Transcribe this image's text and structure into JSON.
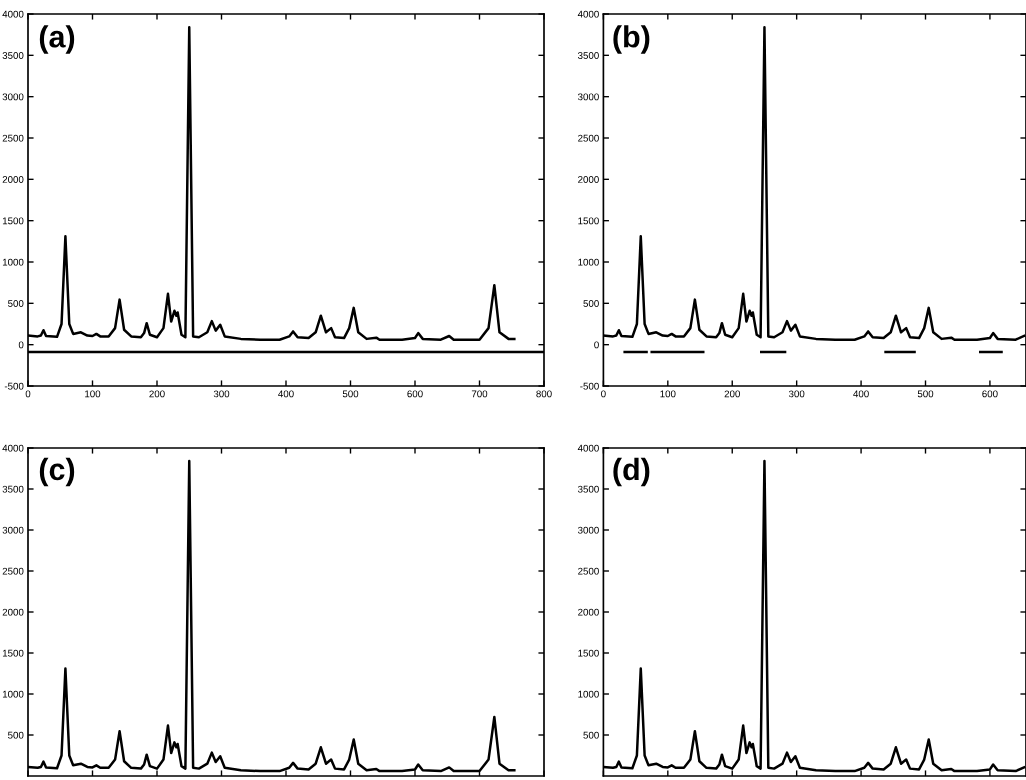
{
  "chart_data": [
    {
      "type": "line",
      "title": "(a)",
      "x": [
        0,
        15,
        20,
        24,
        28,
        45,
        52,
        58,
        64,
        70,
        82,
        92,
        100,
        106,
        112,
        125,
        135,
        142,
        149,
        160,
        175,
        180,
        184,
        189,
        200,
        210,
        217,
        222,
        227,
        230,
        232,
        238,
        244,
        250,
        256,
        265,
        278,
        285,
        291,
        298,
        305,
        330,
        360,
        390,
        405,
        411,
        418,
        435,
        446,
        454,
        462,
        470,
        476,
        490,
        498,
        505,
        512,
        525,
        540,
        545,
        580,
        600,
        605,
        612,
        640,
        653,
        660,
        700,
        714,
        723,
        731,
        745,
        754
      ],
      "series": [
        {
          "color": "#000000",
          "values": [
            110,
            100,
            110,
            175,
            105,
            95,
            250,
            1310,
            250,
            130,
            150,
            110,
            105,
            130,
            100,
            100,
            200,
            545,
            180,
            100,
            90,
            140,
            260,
            120,
            90,
            200,
            615,
            280,
            410,
            350,
            390,
            120,
            90,
            3840,
            100,
            90,
            150,
            285,
            170,
            240,
            100,
            70,
            60,
            60,
            100,
            160,
            90,
            80,
            150,
            350,
            150,
            200,
            90,
            80,
            200,
            445,
            150,
            70,
            85,
            60,
            60,
            80,
            140,
            70,
            60,
            105,
            60,
            60,
            200,
            720,
            150,
            70,
            70
          ]
        }
      ],
      "ref_lines": [
        {
          "axis": "y",
          "value": -90,
          "color": "#000000"
        }
      ],
      "xlim": [
        0,
        800
      ],
      "xticks": [
        0,
        100,
        200,
        300,
        400,
        500,
        600,
        700,
        800
      ],
      "ylim": [
        -500,
        4000
      ],
      "yticks": [
        -500,
        0,
        500,
        1000,
        1500,
        2000,
        2500,
        3000,
        3500,
        4000
      ],
      "grid": false,
      "legend": false
    },
    {
      "type": "line",
      "title": "(b)",
      "x": [
        0,
        15,
        20,
        24,
        28,
        45,
        52,
        58,
        64,
        70,
        82,
        92,
        100,
        106,
        112,
        125,
        135,
        142,
        149,
        160,
        175,
        180,
        184,
        189,
        200,
        210,
        217,
        222,
        227,
        230,
        232,
        238,
        244,
        250,
        256,
        265,
        278,
        285,
        291,
        298,
        305,
        330,
        360,
        390,
        405,
        411,
        418,
        435,
        446,
        454,
        462,
        470,
        476,
        490,
        498,
        505,
        512,
        525,
        540,
        545,
        580,
        600,
        605,
        612,
        640,
        653
      ],
      "series": [
        {
          "color": "#000000",
          "values": [
            110,
            100,
            110,
            175,
            105,
            95,
            250,
            1310,
            250,
            130,
            150,
            110,
            105,
            130,
            100,
            100,
            200,
            545,
            180,
            100,
            90,
            140,
            260,
            120,
            90,
            200,
            615,
            280,
            410,
            350,
            390,
            120,
            90,
            3840,
            100,
            90,
            150,
            285,
            170,
            240,
            100,
            70,
            60,
            60,
            100,
            160,
            90,
            80,
            150,
            350,
            150,
            200,
            90,
            80,
            200,
            445,
            150,
            70,
            85,
            60,
            60,
            80,
            140,
            70,
            60,
            105
          ]
        },
        {
          "type": "line",
          "color": "#000000",
          "x": [
            33,
            67,
            70,
            75,
            155,
            200,
            245,
            282,
            360,
            438,
            483,
            530,
            585,
            618
          ],
          "values": [
            -90,
            -90,
            null,
            -90,
            -90,
            null,
            -90,
            -90,
            null,
            -90,
            -90,
            null,
            -90,
            -90
          ]
        }
      ],
      "xlim": [
        0,
        656
      ],
      "xticks": [
        0,
        100,
        200,
        300,
        400,
        500,
        600
      ],
      "ylim": [
        -500,
        4000
      ],
      "yticks": [
        -500,
        0,
        500,
        1000,
        1500,
        2000,
        2500,
        3000,
        3500,
        4000
      ],
      "grid": false,
      "legend": false
    },
    {
      "type": "line",
      "title": "(c)",
      "x": [
        0,
        15,
        20,
        24,
        28,
        45,
        52,
        58,
        64,
        70,
        82,
        92,
        100,
        106,
        112,
        125,
        135,
        142,
        149,
        160,
        175,
        180,
        184,
        189,
        200,
        210,
        217,
        222,
        227,
        230,
        232,
        238,
        244,
        250,
        256,
        265,
        278,
        285,
        291,
        298,
        305,
        330,
        360,
        390,
        405,
        411,
        418,
        435,
        446,
        454,
        462,
        470,
        476,
        490,
        498,
        505,
        512,
        525,
        540,
        545,
        580,
        600,
        605,
        612,
        640,
        653,
        660,
        700,
        714,
        723,
        731,
        745,
        754
      ],
      "series": [
        {
          "color": "#000000",
          "values": [
            110,
            100,
            110,
            175,
            105,
            95,
            250,
            1310,
            250,
            130,
            150,
            110,
            105,
            130,
            100,
            100,
            200,
            545,
            180,
            100,
            90,
            140,
            260,
            120,
            90,
            200,
            615,
            280,
            410,
            350,
            390,
            120,
            90,
            3840,
            100,
            90,
            150,
            285,
            170,
            240,
            100,
            70,
            60,
            60,
            100,
            160,
            90,
            80,
            150,
            350,
            150,
            200,
            90,
            80,
            200,
            445,
            150,
            70,
            85,
            60,
            60,
            80,
            140,
            70,
            60,
            105,
            60,
            60,
            200,
            720,
            150,
            70,
            70
          ]
        }
      ],
      "xlim": [
        0,
        800
      ],
      "xticks": [
        0,
        100,
        200,
        300,
        400,
        500,
        600,
        700,
        800
      ],
      "ylim": [
        0,
        4000
      ],
      "yticks": [
        500,
        1000,
        1500,
        2000,
        2500,
        3000,
        3500,
        4000
      ],
      "tick_labels": "y",
      "grid": false,
      "legend": false
    },
    {
      "type": "line",
      "title": "(d)",
      "x": [
        0,
        15,
        20,
        24,
        28,
        45,
        52,
        58,
        64,
        70,
        82,
        92,
        100,
        106,
        112,
        125,
        135,
        142,
        149,
        160,
        175,
        180,
        184,
        189,
        200,
        210,
        217,
        222,
        227,
        230,
        232,
        238,
        244,
        250,
        256,
        265,
        278,
        285,
        291,
        298,
        305,
        330,
        360,
        390,
        405,
        411,
        418,
        435,
        446,
        454,
        462,
        470,
        476,
        490,
        498,
        505,
        512,
        525,
        540,
        545,
        580,
        600,
        605,
        612,
        640,
        653
      ],
      "series": [
        {
          "color": "#000000",
          "values": [
            110,
            100,
            110,
            175,
            105,
            95,
            250,
            1310,
            250,
            130,
            150,
            110,
            105,
            130,
            100,
            100,
            200,
            545,
            180,
            100,
            90,
            140,
            260,
            120,
            90,
            200,
            615,
            280,
            410,
            350,
            390,
            120,
            90,
            3840,
            100,
            90,
            150,
            285,
            170,
            240,
            100,
            70,
            60,
            60,
            100,
            160,
            90,
            80,
            150,
            350,
            150,
            200,
            90,
            80,
            200,
            445,
            150,
            70,
            85,
            60,
            60,
            80,
            140,
            70,
            60,
            105
          ]
        }
      ],
      "xlim": [
        0,
        656
      ],
      "xticks": [
        0,
        100,
        200,
        300,
        400,
        500,
        600
      ],
      "ylim": [
        0,
        4000
      ],
      "yticks": [
        500,
        1000,
        1500,
        2000,
        2500,
        3000,
        3500,
        4000
      ],
      "tick_labels": "y",
      "grid": false,
      "legend": false
    }
  ]
}
